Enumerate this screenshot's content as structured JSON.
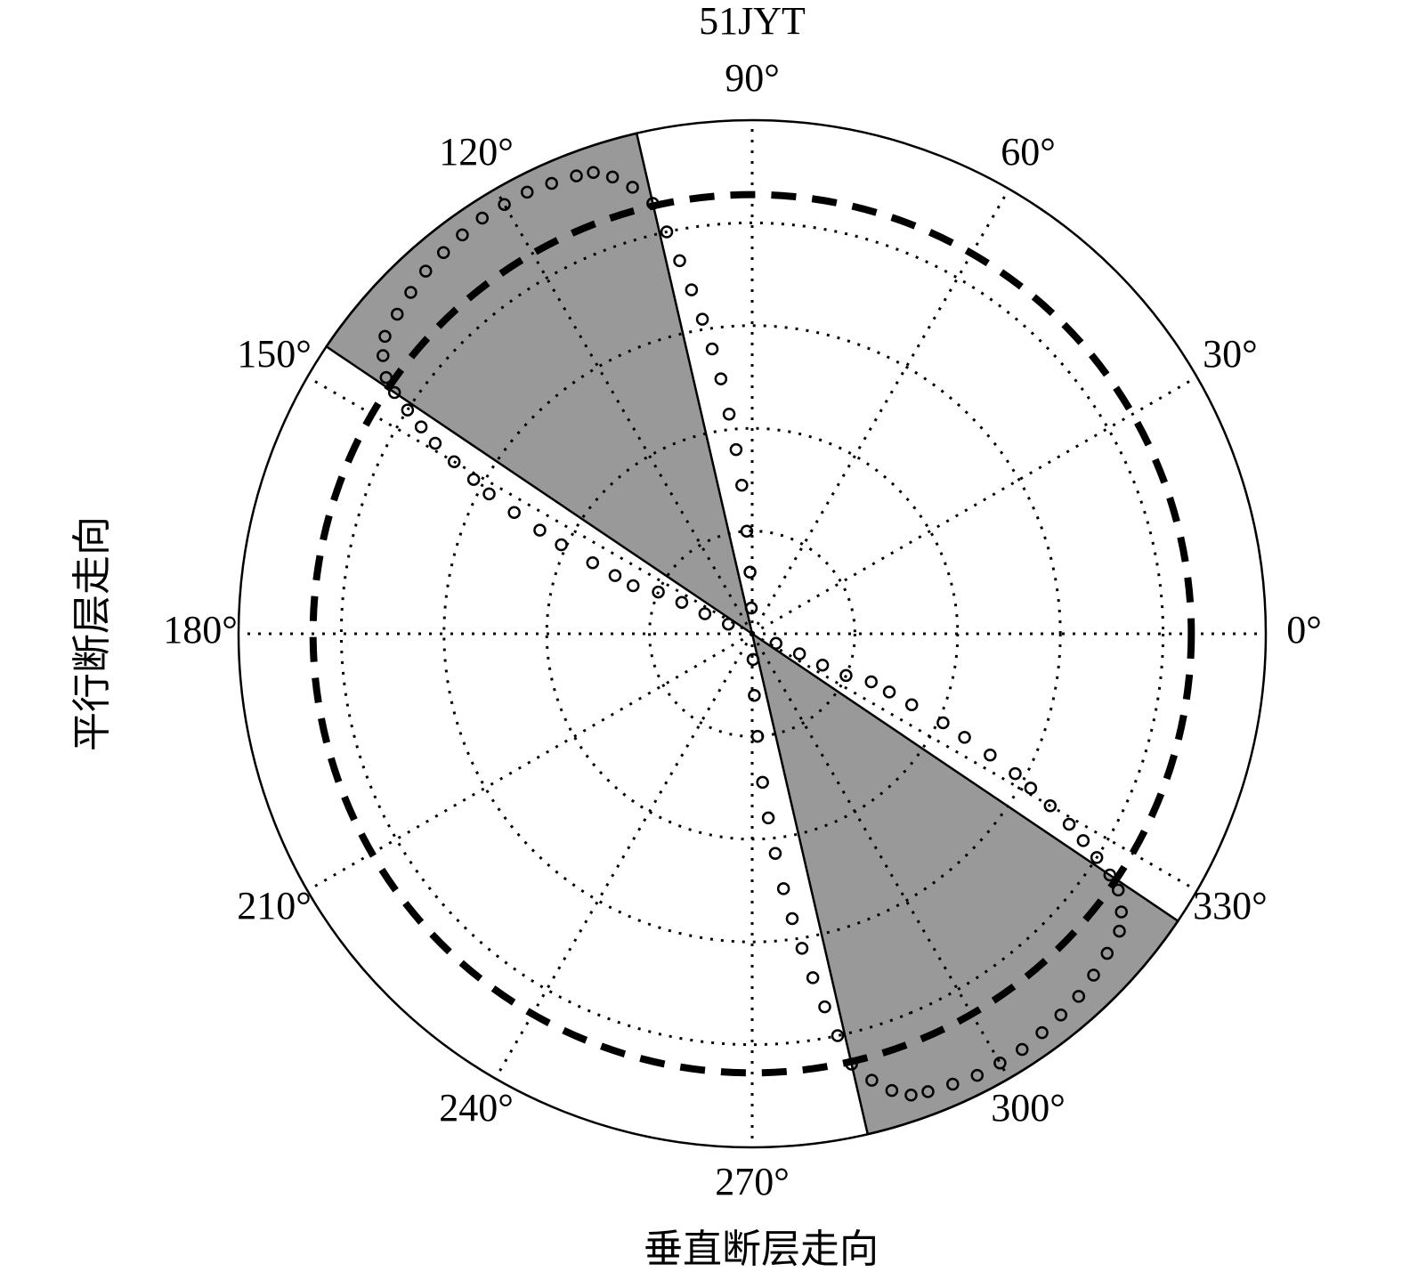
{
  "chart_data": {
    "type": "polar-scatter",
    "title": "51JYT",
    "xlabel": "垂直断层走向",
    "ylabel": "平行断层走向",
    "rlim": [
      0,
      1
    ],
    "rticks": [
      0.2,
      0.4,
      0.6,
      0.8,
      1
    ],
    "thetaticks": [
      {
        "value": 0,
        "label": "0°"
      },
      {
        "value": 30,
        "label": "30°"
      },
      {
        "value": 60,
        "label": "60°"
      },
      {
        "value": 90,
        "label": "90°"
      },
      {
        "value": 120,
        "label": "120°"
      },
      {
        "value": 150,
        "label": "150°"
      },
      {
        "value": 180,
        "label": "180°"
      },
      {
        "value": 210,
        "label": "210°"
      },
      {
        "value": 240,
        "label": "240°"
      },
      {
        "value": 270,
        "label": "270°"
      },
      {
        "value": 300,
        "label": "300°"
      },
      {
        "value": 330,
        "label": "330°"
      }
    ],
    "grid": true,
    "sectors": [
      [
        103,
        146
      ],
      [
        283,
        326
      ]
    ],
    "sector_color": "#999999",
    "reference_circle": 0.855,
    "series": [
      {
        "color": "#000000",
        "theta": [
          338,
          337,
          336,
          336,
          338,
          337,
          336,
          335,
          334,
          333,
          332,
          331,
          330,
          329,
          328,
          327,
          326,
          325,
          323,
          321,
          318,
          315,
          312,
          309,
          306,
          303,
          300,
          297,
          294,
          291,
          289,
          287,
          285,
          283,
          282,
          281,
          280,
          279,
          278,
          277,
          276,
          275,
          274,
          273,
          272,
          272,
          158,
          157,
          156,
          156,
          158,
          157,
          156,
          155,
          154,
          153,
          152,
          151,
          150,
          149,
          148,
          147,
          146,
          145,
          143,
          141,
          138,
          135,
          132,
          129,
          126,
          123,
          120,
          117,
          114,
          111,
          109,
          107,
          105,
          103,
          102,
          101,
          100,
          99,
          98,
          97,
          96,
          95,
          94,
          93,
          92,
          92
        ],
        "r": [
          0.05,
          0.1,
          0.15,
          0.2,
          0.25,
          0.29,
          0.34,
          0.41,
          0.46,
          0.52,
          0.58,
          0.62,
          0.67,
          0.72,
          0.76,
          0.8,
          0.84,
          0.87,
          0.9,
          0.92,
          0.93,
          0.94,
          0.95,
          0.955,
          0.96,
          0.965,
          0.965,
          0.965,
          0.96,
          0.955,
          0.95,
          0.93,
          0.9,
          0.86,
          0.8,
          0.74,
          0.68,
          0.62,
          0.56,
          0.5,
          0.43,
          0.36,
          0.29,
          0.2,
          0.12,
          0.05,
          0.05,
          0.1,
          0.15,
          0.2,
          0.25,
          0.29,
          0.34,
          0.41,
          0.46,
          0.52,
          0.58,
          0.62,
          0.67,
          0.72,
          0.76,
          0.8,
          0.84,
          0.87,
          0.9,
          0.92,
          0.93,
          0.94,
          0.95,
          0.955,
          0.96,
          0.965,
          0.965,
          0.965,
          0.96,
          0.955,
          0.95,
          0.93,
          0.9,
          0.86,
          0.8,
          0.74,
          0.68,
          0.62,
          0.56,
          0.5,
          0.43,
          0.36,
          0.29,
          0.2,
          0.12,
          0.05
        ]
      }
    ]
  }
}
